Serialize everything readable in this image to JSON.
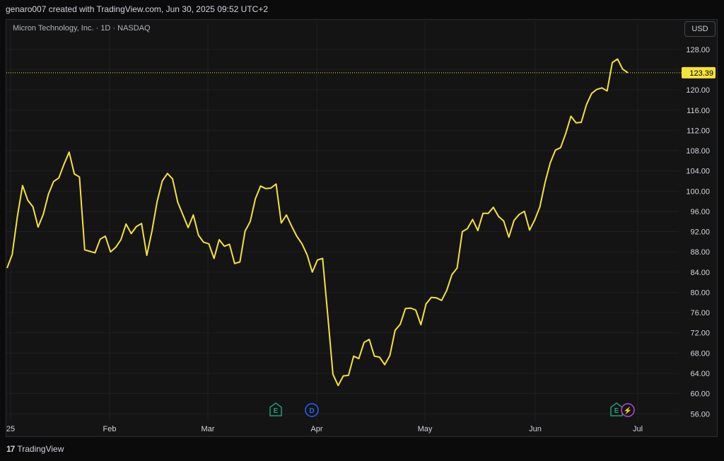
{
  "caption": "genaro007 created with TradingView.com, Jun 30, 2025 09:52 UTC+2",
  "symbol": "Micron Technology, Inc. · 1D · NASDAQ",
  "currency": "USD",
  "brand": {
    "name": "TradingView"
  },
  "colors": {
    "line": "#f5e23a",
    "grid": "#1e1f22",
    "axis_text": "#d1d4dc",
    "earnings": "#1b9e77",
    "dividend": "#2962ff",
    "split": "#b44ad6"
  },
  "events": [
    {
      "letter": "E",
      "kind": "earnings",
      "date": "Mar 20"
    },
    {
      "letter": "D",
      "kind": "dividend",
      "date": "Mar 31"
    },
    {
      "letter": "E",
      "kind": "earnings",
      "date": "Jun 25"
    },
    {
      "letter": "⚡",
      "kind": "split",
      "date": "Jun 26"
    }
  ],
  "chart_data": {
    "type": "line",
    "title": "Micron Technology, Inc. · 1D · NASDAQ",
    "last_price": "123.39",
    "x_tick_labels": [
      "25",
      "Feb",
      "Mar",
      "Apr",
      "May",
      "Jun",
      "Jul"
    ],
    "y_tick_labels": [
      "56.00",
      "60.00",
      "64.00",
      "68.00",
      "72.00",
      "76.00",
      "80.00",
      "84.00",
      "88.00",
      "92.00",
      "96.00",
      "100.00",
      "104.00",
      "108.00",
      "112.00",
      "116.00",
      "120.00",
      "124.00",
      "128.00"
    ],
    "ylim": [
      54.5,
      130.5
    ],
    "grid": true,
    "series": [
      {
        "values": [
          84.8,
          87.5,
          95.0,
          101.1,
          98.2,
          96.9,
          92.9,
          95.4,
          99.4,
          101.9,
          102.6,
          105.3,
          107.7,
          103.4,
          102.8,
          88.4,
          88.1,
          87.8,
          90.5,
          91.1,
          88.0,
          88.9,
          90.4,
          93.5,
          91.6,
          93.0,
          93.6,
          87.3,
          92.1,
          97.9,
          102.0,
          103.5,
          102.4,
          97.8,
          95.3,
          92.8,
          95.3,
          91.3,
          89.9,
          89.6,
          86.7,
          90.4,
          89.1,
          89.5,
          85.7,
          86.0,
          92.1,
          94.0,
          98.5,
          101.0,
          100.5,
          100.6,
          101.4,
          93.7,
          95.3,
          93.1,
          91.1,
          89.6,
          87.4,
          84.0,
          86.4,
          86.7,
          75.4,
          63.8,
          61.6,
          63.5,
          63.6,
          67.4,
          66.9,
          70.1,
          70.7,
          67.4,
          67.2,
          65.7,
          67.5,
          72.5,
          73.7,
          76.8,
          76.9,
          76.5,
          73.6,
          77.7,
          79.0,
          78.9,
          78.4,
          80.4,
          83.5,
          84.8,
          92.0,
          92.6,
          94.4,
          92.2,
          95.6,
          95.6,
          96.8,
          95.0,
          94.1,
          90.9,
          94.2,
          95.4,
          96.0,
          92.3,
          94.3,
          96.9,
          101.7,
          105.6,
          108.1,
          108.6,
          111.4,
          114.8,
          113.5,
          113.6,
          117.1,
          119.3,
          120.1,
          120.4,
          119.8,
          125.4,
          126.1,
          124.1,
          123.4
        ]
      }
    ]
  }
}
